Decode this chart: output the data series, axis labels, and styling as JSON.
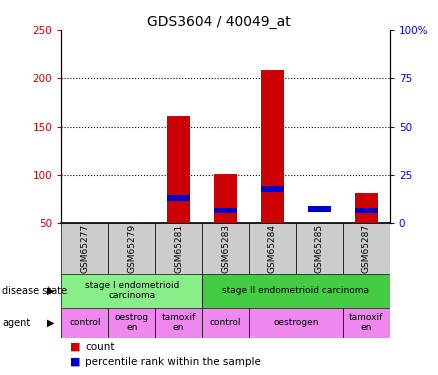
{
  "title": "GDS3604 / 40049_at",
  "samples": [
    "GSM65277",
    "GSM65279",
    "GSM65281",
    "GSM65283",
    "GSM65284",
    "GSM65285",
    "GSM65287"
  ],
  "count_values": [
    0,
    0,
    161,
    101,
    209,
    0,
    81
  ],
  "percentile_values": [
    0,
    0,
    76,
    63,
    85,
    65,
    63
  ],
  "ylim_left": [
    50,
    250
  ],
  "ylim_right": [
    0,
    100
  ],
  "yticks_left": [
    50,
    100,
    150,
    200,
    250
  ],
  "yticks_right": [
    0,
    25,
    50,
    75,
    100
  ],
  "ytick_labels_left": [
    "50",
    "100",
    "150",
    "200",
    "250"
  ],
  "ytick_labels_right": [
    "0",
    "25",
    "50",
    "75",
    "100%"
  ],
  "bar_width": 0.5,
  "count_color": "#cc0000",
  "percentile_color": "#0000cc",
  "sample_bg_color": "#cccccc",
  "disease_states": [
    {
      "label": "stage I endometrioid\ncarcinoma",
      "start": 0,
      "end": 3,
      "color": "#88ee88"
    },
    {
      "label": "stage II endometrioid carcinoma",
      "start": 3,
      "end": 7,
      "color": "#44cc44"
    }
  ],
  "agents": [
    {
      "label": "control",
      "start": 0,
      "end": 1
    },
    {
      "label": "oestrog\nen",
      "start": 1,
      "end": 2
    },
    {
      "label": "tamoxif\nen",
      "start": 2,
      "end": 3
    },
    {
      "label": "control",
      "start": 3,
      "end": 4
    },
    {
      "label": "oestrogen",
      "start": 4,
      "end": 6
    },
    {
      "label": "tamoxif\nen",
      "start": 6,
      "end": 7
    }
  ],
  "agent_color": "#ee88ee",
  "legend_count_label": "count",
  "legend_percentile_label": "percentile rank within the sample",
  "blue_bar_height": 6,
  "title_fontsize": 10,
  "tick_fontsize": 7.5,
  "label_fontsize": 7,
  "sample_fontsize": 6.5,
  "annotation_fontsize": 6.5
}
